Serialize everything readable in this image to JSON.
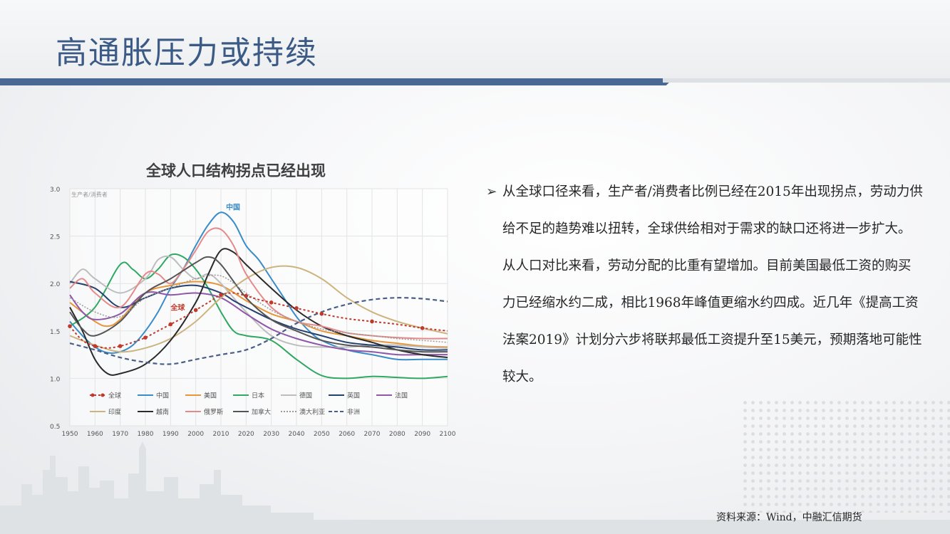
{
  "page": {
    "title": "高通胀压力或持续",
    "paragraph": "从全球口径来看，生产者/消费者比例已经在2015年出现拐点，劳动力供给不足的趋势难以扭转，全球供给相对于需求的缺口还将进一步扩大。从人口对比来看，劳动分配的比重有望增加。目前美国最低工资的购买力已经缩水约二成，相比1968年峰值更缩水约四成。近几年《提高工资法案2019》计划分六步将联邦最低工资提升至15美元，预期落地可能性较大。",
    "source": "资料来源：Wind，中融汇信期货",
    "bullet_icon": "arrow-right-icon"
  },
  "chart_data": {
    "type": "line",
    "title": "全球人口结构拐点已经出现",
    "ylabel": "生产者/消费者",
    "xlabel": "",
    "xlim": [
      1950,
      2100
    ],
    "ylim": [
      0.5,
      3.0
    ],
    "xticks": [
      1950,
      1960,
      1970,
      1980,
      1990,
      2000,
      2010,
      2020,
      2030,
      2040,
      2050,
      2060,
      2070,
      2080,
      2090,
      2100
    ],
    "xtick_labels": [
      "1950",
      "1960",
      "1970",
      "1980",
      "1990",
      "2000",
      "2010",
      "2020",
      "2030",
      "2040",
      "2050",
      "2060",
      "2070",
      "2080",
      "2090",
      "2100"
    ],
    "yticks": [
      0.5,
      1.0,
      1.5,
      2.0,
      2.5,
      3.0
    ],
    "ytick_labels": [
      "0.5",
      "1.0",
      "1.5",
      "2.0",
      "2.5",
      "3.0"
    ],
    "grid": true,
    "legend_position": "bottom",
    "annotations": [
      {
        "text": "中国",
        "x": 2012,
        "y": 2.78,
        "color": "#3a8cc8"
      },
      {
        "text": "全球",
        "x": 1990,
        "y": 1.72,
        "color": "#c0392b"
      }
    ],
    "series": [
      {
        "name": "全球",
        "color": "#c0392b",
        "style": "dotted-marker",
        "x": [
          1950,
          1955,
          1960,
          1965,
          1970,
          1975,
          1980,
          1985,
          1990,
          1995,
          2000,
          2005,
          2010,
          2015,
          2020,
          2025,
          2030,
          2035,
          2040,
          2045,
          2050,
          2060,
          2070,
          2080,
          2090,
          2100
        ],
        "y": [
          1.55,
          1.4,
          1.34,
          1.32,
          1.34,
          1.38,
          1.43,
          1.5,
          1.57,
          1.64,
          1.72,
          1.8,
          1.88,
          1.9,
          1.87,
          1.83,
          1.8,
          1.77,
          1.74,
          1.71,
          1.68,
          1.63,
          1.6,
          1.57,
          1.53,
          1.5
        ]
      },
      {
        "name": "中国",
        "color": "#3a8cc8",
        "style": "solid",
        "x": [
          1950,
          1955,
          1960,
          1965,
          1970,
          1975,
          1980,
          1985,
          1990,
          1995,
          2000,
          2005,
          2010,
          2015,
          2020,
          2025,
          2030,
          2035,
          2040,
          2045,
          2050,
          2060,
          2070,
          2080,
          2090,
          2100
        ],
        "y": [
          1.6,
          1.45,
          1.33,
          1.27,
          1.28,
          1.35,
          1.5,
          1.7,
          1.95,
          2.15,
          2.4,
          2.62,
          2.75,
          2.65,
          2.4,
          2.25,
          2.05,
          1.85,
          1.65,
          1.5,
          1.4,
          1.3,
          1.25,
          1.2,
          1.2,
          1.2
        ]
      },
      {
        "name": "美国",
        "color": "#e8963a",
        "style": "solid",
        "x": [
          1950,
          1960,
          1965,
          1970,
          1980,
          1990,
          2000,
          2010,
          2020,
          2030,
          2040,
          2050,
          2060,
          2070,
          2080,
          2090,
          2100
        ],
        "y": [
          1.8,
          1.6,
          1.55,
          1.62,
          1.9,
          1.98,
          2.02,
          1.98,
          1.82,
          1.68,
          1.6,
          1.5,
          1.45,
          1.4,
          1.37,
          1.34,
          1.33
        ]
      },
      {
        "name": "日本",
        "color": "#2fa862",
        "style": "solid",
        "x": [
          1950,
          1960,
          1970,
          1975,
          1980,
          1985,
          1990,
          1995,
          2000,
          2005,
          2010,
          2015,
          2020,
          2030,
          2040,
          2050,
          2060,
          2070,
          2080,
          2090,
          2100
        ],
        "y": [
          1.55,
          1.75,
          2.2,
          2.15,
          2.05,
          2.15,
          2.3,
          2.28,
          2.15,
          1.95,
          1.7,
          1.5,
          1.45,
          1.4,
          1.2,
          1.03,
          1.0,
          1.02,
          1.01,
          1.0,
          1.02
        ]
      },
      {
        "name": "德国",
        "color": "#bdbdbd",
        "style": "solid",
        "x": [
          1950,
          1955,
          1960,
          1970,
          1980,
          1985,
          1990,
          1995,
          2000,
          2005,
          2010,
          2020,
          2030,
          2040,
          2050,
          2060,
          2070,
          2080,
          2090,
          2100
        ],
        "y": [
          2.0,
          2.15,
          2.05,
          1.9,
          2.05,
          2.25,
          2.28,
          2.15,
          2.05,
          2.1,
          2.0,
          1.7,
          1.45,
          1.35,
          1.33,
          1.33,
          1.35,
          1.35,
          1.33,
          1.32
        ]
      },
      {
        "name": "英国",
        "color": "#25406e",
        "style": "solid",
        "x": [
          1950,
          1960,
          1970,
          1980,
          1990,
          2000,
          2010,
          2015,
          2020,
          2030,
          2040,
          2050,
          2060,
          2070,
          2080,
          2090,
          2100
        ],
        "y": [
          2.02,
          1.95,
          1.75,
          1.85,
          1.95,
          1.98,
          1.9,
          1.82,
          1.75,
          1.62,
          1.52,
          1.45,
          1.38,
          1.35,
          1.33,
          1.3,
          1.3
        ]
      },
      {
        "name": "法国",
        "color": "#8e57a8",
        "style": "solid",
        "x": [
          1950,
          1955,
          1960,
          1970,
          1980,
          1990,
          2000,
          2010,
          2020,
          2030,
          2040,
          2050,
          2060,
          2070,
          2080,
          2090,
          2100
        ],
        "y": [
          1.88,
          1.7,
          1.62,
          1.68,
          1.9,
          1.88,
          1.9,
          1.85,
          1.68,
          1.52,
          1.42,
          1.35,
          1.3,
          1.28,
          1.25,
          1.25,
          1.25
        ]
      },
      {
        "name": "印度",
        "color": "#cdb47e",
        "style": "solid",
        "x": [
          1950,
          1960,
          1970,
          1980,
          1990,
          2000,
          2010,
          2020,
          2030,
          2040,
          2050,
          2060,
          2070,
          2080,
          2090,
          2100
        ],
        "y": [
          1.45,
          1.35,
          1.28,
          1.32,
          1.42,
          1.6,
          1.85,
          2.05,
          2.17,
          2.17,
          2.05,
          1.85,
          1.7,
          1.6,
          1.53,
          1.47
        ]
      },
      {
        "name": "越南",
        "color": "#2a2a2a",
        "style": "solid",
        "x": [
          1950,
          1955,
          1960,
          1965,
          1970,
          1980,
          1990,
          2000,
          2005,
          2010,
          2015,
          2020,
          2030,
          2040,
          2050,
          2060,
          2070,
          2080,
          2090,
          2100
        ],
        "y": [
          1.75,
          1.5,
          1.2,
          1.05,
          1.05,
          1.15,
          1.4,
          1.8,
          2.1,
          2.35,
          2.33,
          2.2,
          1.95,
          1.72,
          1.55,
          1.45,
          1.38,
          1.3,
          1.25,
          1.22
        ]
      },
      {
        "name": "俄罗斯",
        "color": "#e58a8a",
        "style": "solid",
        "x": [
          1950,
          1955,
          1960,
          1970,
          1980,
          1985,
          1990,
          1995,
          2000,
          2005,
          2010,
          2015,
          2020,
          2030,
          2040,
          2050,
          2060,
          2070,
          2080,
          2090,
          2100
        ],
        "y": [
          1.95,
          2.05,
          1.9,
          1.75,
          2.1,
          2.1,
          2.0,
          2.15,
          2.35,
          2.55,
          2.57,
          2.4,
          2.1,
          1.75,
          1.6,
          1.55,
          1.48,
          1.45,
          1.43,
          1.42,
          1.42
        ]
      },
      {
        "name": "加拿大",
        "color": "#555555",
        "style": "solid",
        "x": [
          1950,
          1955,
          1960,
          1970,
          1980,
          1990,
          2000,
          2005,
          2010,
          2020,
          2030,
          2040,
          2050,
          2060,
          2070,
          2080,
          2090,
          2100
        ],
        "y": [
          1.7,
          1.52,
          1.45,
          1.6,
          1.9,
          2.05,
          2.22,
          2.28,
          2.2,
          1.85,
          1.62,
          1.5,
          1.4,
          1.35,
          1.33,
          1.3,
          1.28,
          1.28
        ]
      },
      {
        "name": "澳大利亚",
        "color": "#9a9a9a",
        "style": "dotted",
        "x": [
          1950,
          1960,
          1970,
          1980,
          1990,
          2000,
          2010,
          2020,
          2030,
          2040,
          2050,
          2060,
          2070,
          2080,
          2090,
          2100
        ],
        "y": [
          1.85,
          1.7,
          1.65,
          1.85,
          1.95,
          2.05,
          2.08,
          1.9,
          1.72,
          1.6,
          1.52,
          1.48,
          1.45,
          1.42,
          1.4,
          1.38
        ]
      },
      {
        "name": "非洲",
        "color": "#4a5f85",
        "style": "dashed",
        "x": [
          1950,
          1960,
          1970,
          1980,
          1990,
          2000,
          2010,
          2020,
          2030,
          2040,
          2050,
          2060,
          2070,
          2080,
          2090,
          2100
        ],
        "y": [
          1.37,
          1.3,
          1.22,
          1.17,
          1.15,
          1.2,
          1.25,
          1.3,
          1.42,
          1.58,
          1.7,
          1.78,
          1.83,
          1.85,
          1.84,
          1.81
        ]
      }
    ]
  }
}
